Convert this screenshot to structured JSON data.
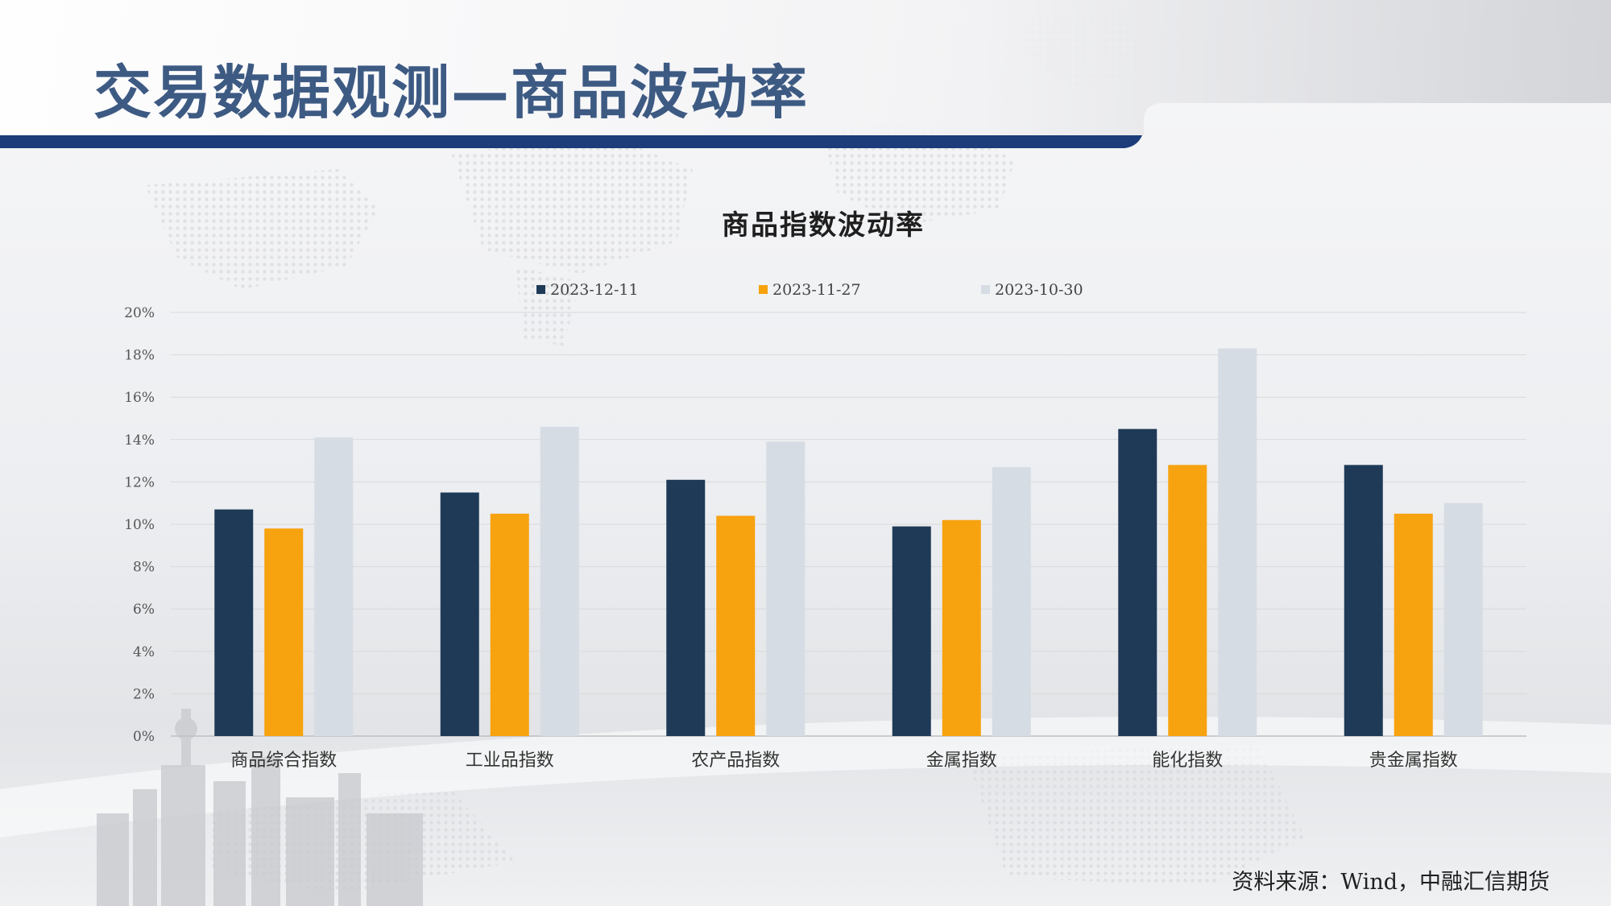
{
  "slide": {
    "title": "交易数据观测—商品波动率",
    "source": "资料来源：Wind，中融汇信期货"
  },
  "chart_data": {
    "type": "bar",
    "title": "商品指数波动率",
    "categories": [
      "商品综合指数",
      "工业品指数",
      "农产品指数",
      "金属指数",
      "能化指数",
      "贵金属指数"
    ],
    "series": [
      {
        "name": "2023-12-11",
        "color": "#1f3a57",
        "values": [
          10.7,
          11.5,
          12.1,
          9.9,
          14.5,
          12.8
        ]
      },
      {
        "name": "2023-11-27",
        "color": "#f7a20f",
        "values": [
          9.8,
          10.5,
          10.4,
          10.2,
          12.8,
          10.5
        ]
      },
      {
        "name": "2023-10-30",
        "color": "#d6dce4",
        "values": [
          14.1,
          14.6,
          13.9,
          12.7,
          18.3,
          11.0
        ]
      }
    ],
    "ylim": [
      0,
      20
    ],
    "yticks": [
      "0%",
      "2%",
      "4%",
      "6%",
      "8%",
      "10%",
      "12%",
      "14%",
      "16%",
      "18%",
      "20%"
    ],
    "xlabel": "",
    "ylabel": "",
    "grid": true,
    "legend_position": "top"
  },
  "colors": {
    "title": "#3d5a83",
    "header_band": "#1c3c7a"
  }
}
